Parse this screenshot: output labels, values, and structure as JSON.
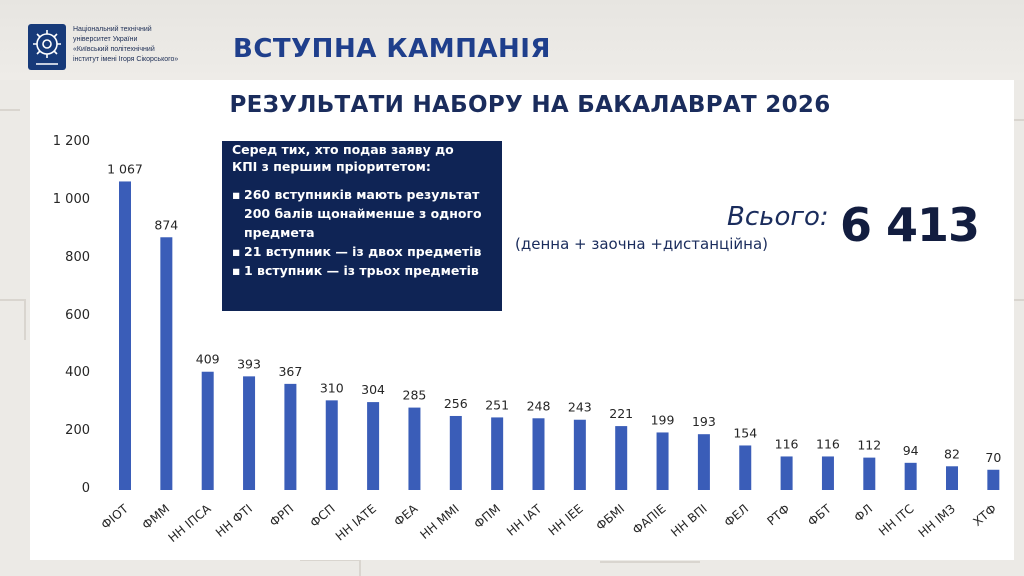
{
  "header": {
    "org_lines": [
      "Національний технічний",
      "університет України",
      "«Київський політехнічний",
      "інститут імені Ігоря Сікорського»"
    ],
    "campaign_title": "ВСТУПНА КАМПАНІЯ"
  },
  "chart_data": {
    "type": "bar",
    "title": "РЕЗУЛЬТАТИ НАБОРУ НА БАКАЛАВРАТ 2026",
    "categories": [
      "ФІОТ",
      "ФММ",
      "НН ІПСА",
      "НН ФТІ",
      "ФРП",
      "ФСП",
      "НН ІАТЕ",
      "ФЕА",
      "НН ММІ",
      "ФПМ",
      "НН ІАТ",
      "НН ІЕЕ",
      "ФБМІ",
      "ФАПІЕ",
      "НН ВПІ",
      "ФЕЛ",
      "РТФ",
      "ФБТ",
      "ФЛ",
      "НН ІТС",
      "НН ІМЗ",
      "ХТФ"
    ],
    "values": [
      1067,
      874,
      409,
      393,
      367,
      310,
      304,
      285,
      256,
      251,
      248,
      243,
      221,
      199,
      193,
      154,
      116,
      116,
      112,
      94,
      82,
      70
    ],
    "value_labels": [
      "1 067",
      "874",
      "409",
      "393",
      "367",
      "310",
      "304",
      "285",
      "256",
      "251",
      "248",
      "243",
      "221",
      "199",
      "193",
      "154",
      "116",
      "116",
      "112",
      "94",
      "82",
      "70"
    ],
    "ylim": [
      0,
      1200
    ],
    "yticks": [
      0,
      200,
      400,
      600,
      800,
      1000,
      1200
    ],
    "ytick_labels": [
      "0",
      "200",
      "400",
      "600",
      "800",
      "1 000",
      "1 200"
    ],
    "xlabel": "",
    "ylabel": "",
    "grid": false,
    "bar_color": "#3a5db8"
  },
  "infobox": {
    "intro": "Серед тих, хто подав заяву до КПІ з першим пріоритетом:",
    "bullets": [
      "260 вступників мають результат 200 балів щонайменше з одного предмета",
      "21 вступник — із двох предметів",
      "1 вступник — із трьох предметів"
    ]
  },
  "total": {
    "label": "Всього:",
    "value": "6 413",
    "note": "(денна + заочна +дистанційна)"
  },
  "colors": {
    "brand_blue": "#1f3f8c",
    "infobox_bg": "#0f2455",
    "bar": "#3a5db8"
  }
}
